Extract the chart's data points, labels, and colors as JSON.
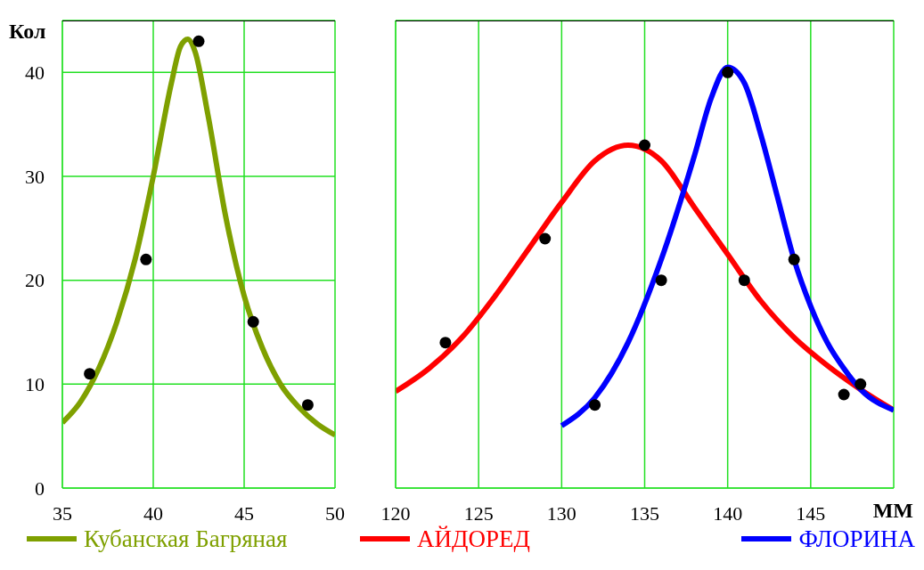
{
  "chart_data": [
    {
      "type": "line",
      "ylabel": "Кол",
      "xlim": [
        35,
        50
      ],
      "xticks": [
        35,
        40,
        45,
        50
      ],
      "ylim": [
        0,
        45
      ],
      "yticks": [
        0,
        10,
        20,
        30,
        40
      ],
      "grid": true,
      "legend": "bottom",
      "series": [
        {
          "name": "Кубанская Багряная",
          "color": "#7fa000",
          "marker": "none",
          "x": [
            35,
            36,
            37,
            38,
            39,
            40,
            41,
            41.5,
            41.9,
            42.3,
            43,
            44,
            45,
            46,
            47,
            48,
            49,
            50
          ],
          "values": [
            6.3,
            8.3,
            11.5,
            16,
            22,
            30,
            39,
            42.5,
            43.2,
            42,
            36,
            26,
            18.5,
            13.5,
            10,
            7.8,
            6.2,
            5.1
          ]
        },
        {
          "type": "scatter",
          "color": "#000000",
          "marker": "circle",
          "x": [
            36.5,
            39.6,
            42.5,
            45.5,
            48.5
          ],
          "values": [
            11,
            22,
            43,
            16,
            8
          ]
        }
      ]
    },
    {
      "type": "line",
      "xlabel": "ММ",
      "xlim": [
        120,
        150
      ],
      "xticks": [
        120,
        125,
        130,
        135,
        140,
        145,
        {
          "value": 150,
          "label": null
        }
      ],
      "ylim": [
        0,
        45
      ],
      "yticks": [
        0,
        10,
        20,
        30,
        40
      ],
      "tick_labels": "x",
      "grid": true,
      "legend": "bottom",
      "series": [
        {
          "name": "АЙДОРЕД",
          "color": "#ff0000",
          "marker": "none",
          "x": [
            120,
            122,
            124,
            126,
            128,
            130,
            132,
            134,
            136,
            138,
            140,
            142,
            144,
            146,
            148,
            150
          ],
          "values": [
            9.3,
            11.5,
            14.5,
            18.5,
            23,
            27.5,
            31.5,
            33,
            31.5,
            27,
            22.5,
            18,
            14.5,
            11.8,
            9.5,
            7.5
          ]
        },
        {
          "name": "ФЛОРИНА",
          "color": "#0000ff",
          "marker": "none",
          "x": [
            130,
            132,
            134,
            136,
            138,
            139,
            140,
            141,
            142,
            143,
            144,
            145,
            146,
            147,
            148,
            150
          ],
          "values": [
            6,
            8.7,
            14,
            22,
            32,
            37.5,
            40.5,
            39,
            34,
            28,
            22,
            17.5,
            14,
            11.5,
            9.5,
            7.5
          ]
        },
        {
          "type": "scatter",
          "color": "#000000",
          "marker": "circle",
          "x": [
            123,
            129,
            135,
            141,
            147,
            132,
            136,
            140,
            144,
            148
          ],
          "values": [
            14,
            24,
            33,
            20,
            9,
            8,
            20,
            40,
            22,
            10
          ]
        }
      ]
    }
  ]
}
